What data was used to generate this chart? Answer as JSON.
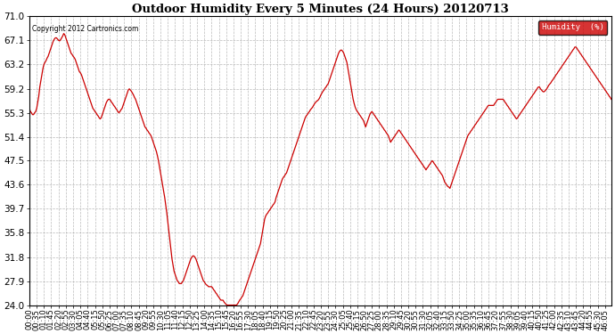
{
  "title": "Outdoor Humidity Every 5 Minutes (24 Hours) 20120713",
  "copyright": "Copyright 2012 Cartronics.com",
  "legend_label": "Humidity  (%)",
  "legend_bg": "#cc0000",
  "legend_text_color": "#ffffff",
  "line_color": "#cc0000",
  "bg_color": "#ffffff",
  "grid_color": "#aaaaaa",
  "ylim": [
    24.0,
    71.0
  ],
  "yticks": [
    24.0,
    27.9,
    31.8,
    35.8,
    39.7,
    43.6,
    47.5,
    51.4,
    55.3,
    59.2,
    63.2,
    67.1,
    71.0
  ],
  "xtick_every": 7,
  "humidity_values": [
    56.0,
    55.5,
    55.3,
    55.0,
    55.0,
    55.3,
    55.5,
    56.0,
    57.0,
    58.0,
    59.5,
    60.5,
    61.5,
    62.5,
    63.2,
    63.5,
    63.8,
    64.2,
    64.5,
    65.0,
    65.5,
    66.0,
    66.5,
    67.0,
    67.3,
    67.5,
    67.5,
    67.3,
    67.1,
    67.0,
    67.2,
    67.5,
    67.8,
    68.2,
    68.0,
    67.5,
    67.0,
    66.5,
    66.0,
    65.5,
    65.0,
    64.8,
    64.5,
    64.3,
    64.0,
    63.5,
    63.0,
    62.5,
    62.0,
    61.8,
    61.5,
    61.0,
    60.5,
    60.0,
    59.5,
    59.0,
    58.5,
    58.0,
    57.5,
    57.0,
    56.5,
    56.0,
    55.8,
    55.5,
    55.3,
    55.0,
    54.8,
    54.5,
    54.3,
    54.5,
    55.0,
    55.5,
    56.0,
    56.5,
    57.0,
    57.3,
    57.5,
    57.5,
    57.3,
    57.0,
    56.8,
    56.5,
    56.3,
    56.0,
    55.8,
    55.5,
    55.3,
    55.5,
    55.8,
    56.0,
    56.5,
    57.0,
    57.5,
    58.0,
    58.5,
    59.0,
    59.2,
    59.0,
    58.8,
    58.5,
    58.2,
    57.8,
    57.5,
    57.0,
    56.5,
    56.0,
    55.5,
    55.0,
    54.5,
    54.0,
    53.5,
    53.0,
    52.8,
    52.5,
    52.3,
    52.0,
    51.8,
    51.5,
    51.0,
    50.5,
    50.0,
    49.5,
    49.0,
    48.3,
    47.5,
    46.5,
    45.5,
    44.5,
    43.5,
    42.5,
    41.5,
    40.3,
    39.0,
    37.5,
    36.0,
    34.5,
    33.0,
    31.5,
    30.5,
    29.5,
    29.0,
    28.5,
    28.0,
    27.8,
    27.5,
    27.5,
    27.5,
    27.8,
    28.0,
    28.5,
    29.0,
    29.5,
    30.0,
    30.5,
    31.0,
    31.5,
    31.8,
    32.0,
    32.0,
    31.8,
    31.5,
    31.0,
    30.5,
    30.0,
    29.5,
    29.0,
    28.5,
    28.0,
    27.8,
    27.5,
    27.3,
    27.2,
    27.0,
    27.0,
    27.0,
    27.0,
    26.8,
    26.5,
    26.3,
    26.0,
    25.8,
    25.5,
    25.3,
    25.0,
    24.8,
    24.8,
    24.8,
    24.5,
    24.3,
    24.1,
    24.0,
    24.0,
    24.0,
    24.0,
    24.0,
    24.0,
    24.0,
    24.0,
    24.0,
    24.0,
    24.2,
    24.5,
    24.8,
    25.0,
    25.3,
    25.5,
    26.0,
    26.5,
    27.0,
    27.5,
    28.0,
    28.5,
    29.0,
    29.5,
    30.0,
    30.5,
    31.0,
    31.5,
    32.0,
    32.5,
    33.0,
    33.5,
    34.0,
    35.0,
    36.0,
    37.0,
    38.0,
    38.5,
    38.8,
    39.0,
    39.3,
    39.5,
    39.8,
    40.0,
    40.3,
    40.5,
    40.8,
    41.5,
    42.0,
    42.5,
    43.0,
    43.5,
    44.0,
    44.5,
    44.8,
    45.0,
    45.3,
    45.5,
    46.0,
    46.5,
    47.0,
    47.5,
    48.0,
    48.5,
    49.0,
    49.5,
    50.0,
    50.5,
    51.0,
    51.5,
    52.0,
    52.5,
    53.0,
    53.5,
    54.0,
    54.5,
    54.8,
    55.0,
    55.3,
    55.5,
    55.8,
    56.0,
    56.2,
    56.5,
    56.8,
    57.0,
    57.2,
    57.3,
    57.5,
    57.8,
    58.2,
    58.5,
    58.8,
    59.0,
    59.3,
    59.5,
    59.8,
    60.0,
    60.5,
    61.0,
    61.5,
    62.0,
    62.5,
    63.0,
    63.5,
    64.0,
    64.5,
    65.0,
    65.3,
    65.5,
    65.5,
    65.3,
    65.0,
    64.5,
    64.0,
    63.5,
    62.5,
    61.5,
    60.5,
    59.5,
    58.5,
    57.5,
    56.8,
    56.2,
    55.8,
    55.5,
    55.3,
    55.0,
    54.8,
    54.5,
    54.3,
    54.0,
    53.5,
    53.0,
    53.5,
    54.0,
    54.5,
    55.0,
    55.3,
    55.5,
    55.3,
    55.0,
    54.8,
    54.5,
    54.3,
    54.0,
    53.8,
    53.5,
    53.3,
    53.0,
    52.8,
    52.5,
    52.3,
    52.0,
    51.8,
    51.5,
    51.0,
    50.5,
    50.8,
    51.0,
    51.3,
    51.5,
    51.8,
    52.0,
    52.3,
    52.5,
    52.3,
    52.0,
    51.8,
    51.5,
    51.3,
    51.0,
    50.8,
    50.5,
    50.3,
    50.0,
    49.8,
    49.5,
    49.3,
    49.0,
    48.8,
    48.5,
    48.3,
    48.0,
    47.8,
    47.5,
    47.3,
    47.0,
    46.8,
    46.5,
    46.3,
    46.0,
    46.3,
    46.5,
    46.8,
    47.0,
    47.3,
    47.5,
    47.3,
    47.0,
    46.8,
    46.5,
    46.3,
    46.0,
    45.8,
    45.5,
    45.3,
    45.0,
    44.5,
    44.0,
    43.8,
    43.5,
    43.3,
    43.2,
    43.0,
    43.5,
    44.0,
    44.5,
    45.0,
    45.5,
    46.0,
    46.5,
    47.0,
    47.5,
    48.0,
    48.5,
    49.0,
    49.5,
    50.0,
    50.5,
    51.0,
    51.5,
    51.8,
    52.0,
    52.3,
    52.5,
    52.8,
    53.0,
    53.3,
    53.5,
    53.8,
    54.0,
    54.3,
    54.5,
    54.8,
    55.0,
    55.3,
    55.5,
    55.8,
    56.0,
    56.3,
    56.5,
    56.5,
    56.5,
    56.5,
    56.5,
    56.5,
    56.8,
    57.0,
    57.3,
    57.5,
    57.5,
    57.5,
    57.5,
    57.5,
    57.5,
    57.3,
    57.0,
    56.8,
    56.5,
    56.3,
    56.0,
    55.8,
    55.5,
    55.3,
    55.0,
    54.8,
    54.5,
    54.3,
    54.5,
    54.8,
    55.0,
    55.3,
    55.5,
    55.8,
    56.0,
    56.3,
    56.5,
    56.8,
    57.0,
    57.3,
    57.5,
    57.8,
    58.0,
    58.3,
    58.5,
    58.8,
    59.0,
    59.3,
    59.5,
    59.5,
    59.2,
    59.0,
    58.8,
    58.7,
    58.8,
    59.0,
    59.2,
    59.5,
    59.8,
    60.0,
    60.2,
    60.5,
    60.7,
    61.0,
    61.2,
    61.5,
    61.7,
    62.0,
    62.2,
    62.5,
    62.7,
    63.0,
    63.2,
    63.5,
    63.7,
    64.0,
    64.2,
    64.5,
    64.7,
    65.0,
    65.2,
    65.5,
    65.7,
    66.0,
    66.0,
    65.8,
    65.5,
    65.3,
    65.0,
    64.8,
    64.5,
    64.3,
    64.0,
    63.8,
    63.5,
    63.3,
    63.0,
    62.8,
    62.5,
    62.3,
    62.0,
    61.8,
    61.5,
    61.3,
    61.0,
    60.8,
    60.5,
    60.3,
    60.0,
    59.8,
    59.5,
    59.3,
    59.0,
    58.8,
    58.5,
    58.3,
    58.0,
    57.8,
    57.5
  ]
}
